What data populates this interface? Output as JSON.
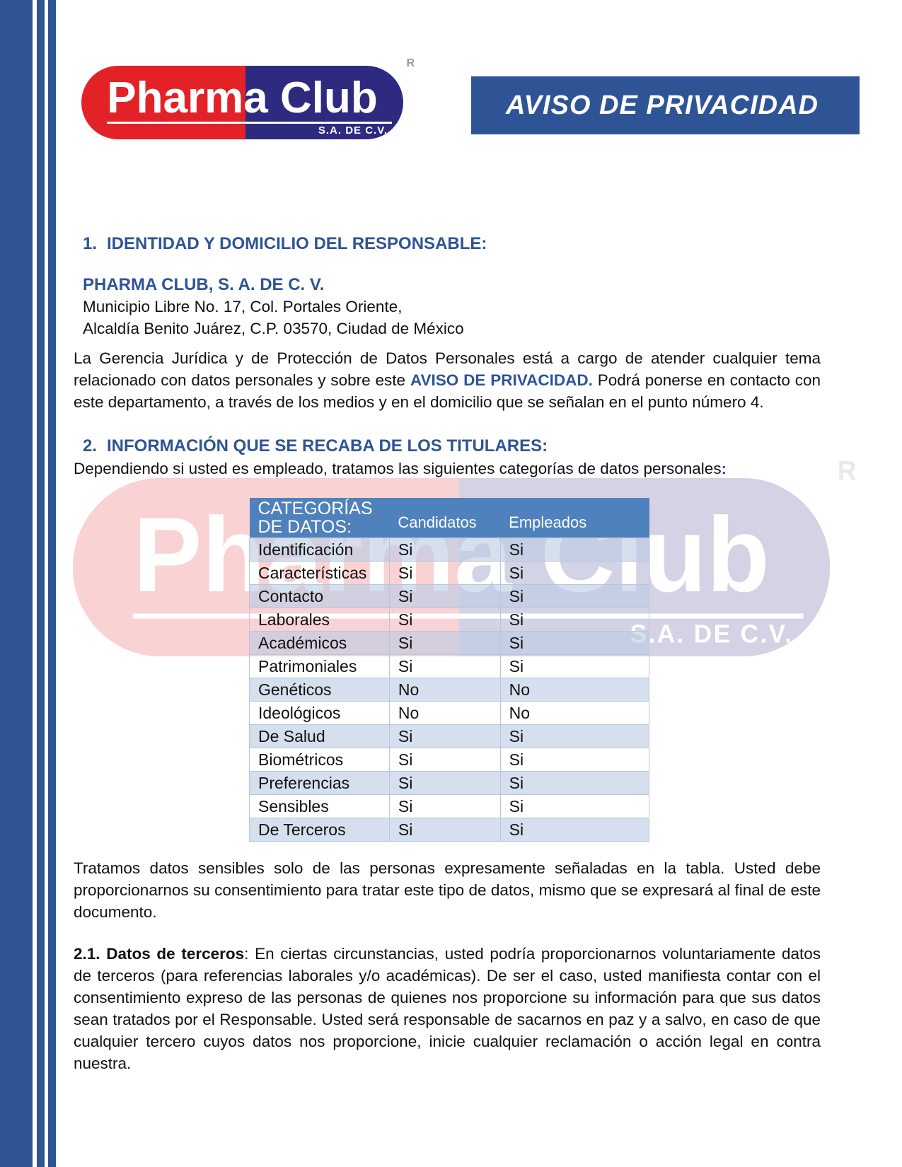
{
  "colors": {
    "accent_blue": "#2F5496",
    "table_header_bg": "#4F81BD",
    "table_alt_row": "rgba(187,204,227,0.62)",
    "logo_red": "#E32227",
    "logo_navy": "#2E2A80"
  },
  "logo": {
    "wordmark": "Pharma Club",
    "subtitle": "S.A. DE C.V.",
    "registered_mark": "R"
  },
  "banner": {
    "title": "AVISO DE PRIVACIDAD"
  },
  "section1": {
    "number": "1.",
    "heading": "IDENTIDAD Y DOMICILIO DEL RESPONSABLE:",
    "company": "PHARMA CLUB, S. A. DE C. V.",
    "address_line1": "Municipio Libre No. 17, Col. Portales Oriente,",
    "address_line2": "Alcaldía Benito Juárez, C.P. 03570, Ciudad de México",
    "paragraph_pre": "La Gerencia Jurídica y de Protección de Datos Personales está a cargo de atender cualquier tema relacionado con datos personales y sobre este ",
    "paragraph_highlight": "AVISO DE PRIVACIDAD.",
    "paragraph_post": " Podrá ponerse en contacto con este departamento, a través de los medios y en el domicilio que se señalan en el punto número 4."
  },
  "section2": {
    "number": "2.",
    "heading": "INFORMACIÓN QUE SE RECABA DE LOS TITULARES:",
    "intro": "Dependiendo si usted es empleado, tratamos las siguientes categorías de datos personales",
    "intro_colon": ":"
  },
  "table": {
    "header": {
      "col1": "CATEGORÍAS DE DATOS:",
      "col2": "Candidatos",
      "col3": "Empleados"
    },
    "rows": [
      {
        "category": "Identificación",
        "candidatos": "Si",
        "empleados": "Si"
      },
      {
        "category": "Características",
        "candidatos": "Si",
        "empleados": "Si"
      },
      {
        "category": "Contacto",
        "candidatos": "Si",
        "empleados": "Si"
      },
      {
        "category": "Laborales",
        "candidatos": "Si",
        "empleados": "Si"
      },
      {
        "category": "Académicos",
        "candidatos": "Si",
        "empleados": "Si"
      },
      {
        "category": "Patrimoniales",
        "candidatos": "Si",
        "empleados": "Si"
      },
      {
        "category": "Genéticos",
        "candidatos": "No",
        "empleados": "No"
      },
      {
        "category": "Ideológicos",
        "candidatos": "No",
        "empleados": "No"
      },
      {
        "category": "De Salud",
        "candidatos": "Si",
        "empleados": "Si"
      },
      {
        "category": "Biométricos",
        "candidatos": "Si",
        "empleados": "Si"
      },
      {
        "category": "Preferencias",
        "candidatos": "Si",
        "empleados": "Si"
      },
      {
        "category": "Sensibles",
        "candidatos": "Si",
        "empleados": "Si"
      },
      {
        "category": "De Terceros",
        "candidatos": "Si",
        "empleados": "Si"
      }
    ]
  },
  "paragraphs": {
    "sensitive": "Tratamos datos sensibles solo de las personas expresamente señaladas en la tabla. Usted debe proporcionarnos su consentimiento para tratar este tipo de datos, mismo que se expresará al final de este documento.",
    "terceros_lead": "2.1. Datos de terceros",
    "terceros_rest": ": En ciertas circunstancias, usted podría proporcionarnos voluntariamente datos de terceros (para referencias laborales y/o académicas). De ser el caso, usted manifiesta contar con el consentimiento expreso de las personas de quienes nos proporcione su información para que sus datos sean tratados por el Responsable. Usted será responsable de sacarnos en paz y a salvo, en caso de que cualquier tercero cuyos datos nos proporcione, inicie cualquier reclamación o acción legal en contra nuestra."
  }
}
